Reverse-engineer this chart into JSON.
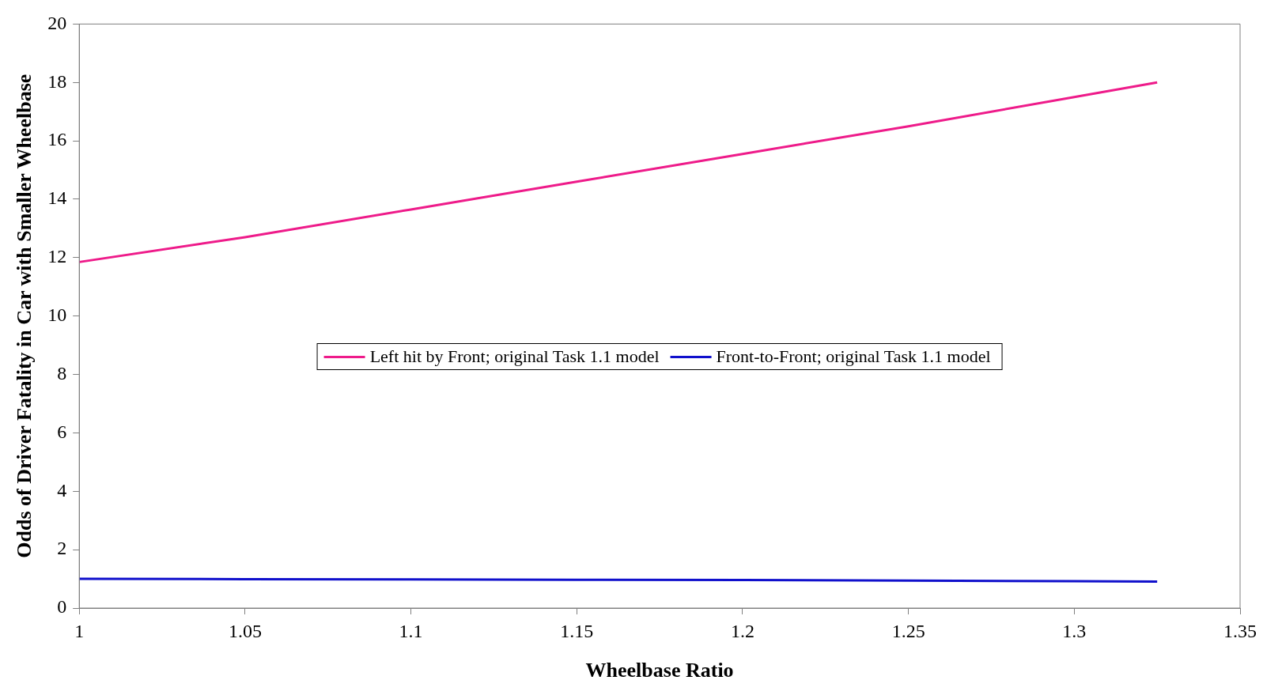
{
  "chart_data": {
    "type": "line",
    "xlabel": "Wheelbase Ratio",
    "ylabel": "Odds of Driver Fatality in Car with Smaller Wheelbase",
    "x": [
      1,
      1.05,
      1.1,
      1.15,
      1.2,
      1.25,
      1.3,
      1.325
    ],
    "series": [
      {
        "name": "Left hit by Front; original Task 1.1 model",
        "color": "#ee1b8a",
        "values": [
          11.85,
          12.7,
          13.65,
          14.6,
          15.55,
          16.5,
          17.5,
          18.0
        ]
      },
      {
        "name": "Front-to-Front; original Task 1.1 model",
        "color": "#1010cc",
        "values": [
          1.0,
          0.99,
          0.98,
          0.97,
          0.96,
          0.94,
          0.92,
          0.91
        ]
      }
    ],
    "xlim": [
      1,
      1.35
    ],
    "xticks": [
      1,
      1.05,
      1.1,
      1.15,
      1.2,
      1.25,
      1.3,
      1.35
    ],
    "ylim": [
      0,
      20
    ],
    "yticks": [
      0,
      2,
      4,
      6,
      8,
      10,
      12,
      14,
      16,
      18,
      20
    ],
    "grid": false,
    "legend": "center",
    "marker": "none",
    "line_style": "solid"
  }
}
